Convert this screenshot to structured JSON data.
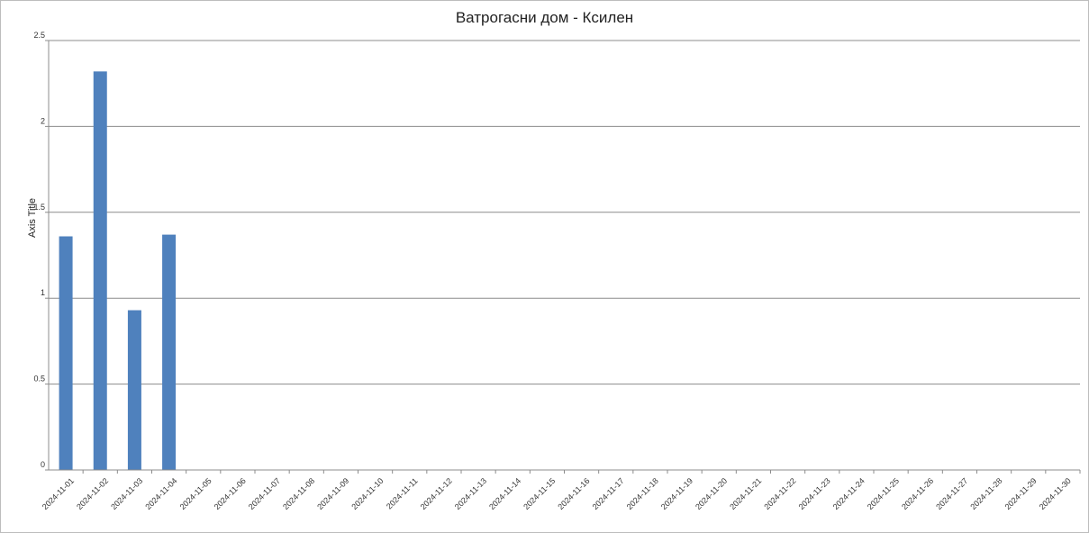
{
  "chart_data": {
    "type": "bar",
    "title": "Ватрогасни дом - Ксилен",
    "xlabel": "",
    "ylabel": "Axis Title",
    "ylim": [
      0,
      2.5
    ],
    "y_ticks": [
      0,
      0.5,
      1,
      1.5,
      2,
      2.5
    ],
    "y_tick_labels": [
      "0",
      "0.5",
      "1",
      "1.5",
      "2",
      "2.5"
    ],
    "grid": true,
    "legend": "none",
    "bar_color": "#4F81BD",
    "gridline_color": "#8c8c8c",
    "categories": [
      "2024-11-01",
      "2024-11-02",
      "2024-11-03",
      "2024-11-04",
      "2024-11-05",
      "2024-11-06",
      "2024-11-07",
      "2024-11-08",
      "2024-11-09",
      "2024-11-10",
      "2024-11-11",
      "2024-11-12",
      "2024-11-13",
      "2024-11-14",
      "2024-11-15",
      "2024-11-16",
      "2024-11-17",
      "2024-11-18",
      "2024-11-19",
      "2024-11-20",
      "2024-11-21",
      "2024-11-22",
      "2024-11-23",
      "2024-11-24",
      "2024-11-25",
      "2024-11-26",
      "2024-11-27",
      "2024-11-28",
      "2024-11-29",
      "2024-11-30"
    ],
    "values": [
      1.36,
      2.32,
      0.93,
      1.37,
      null,
      null,
      null,
      null,
      null,
      null,
      null,
      null,
      null,
      null,
      null,
      null,
      null,
      null,
      null,
      null,
      null,
      null,
      null,
      null,
      null,
      null,
      null,
      null,
      null,
      null
    ]
  }
}
